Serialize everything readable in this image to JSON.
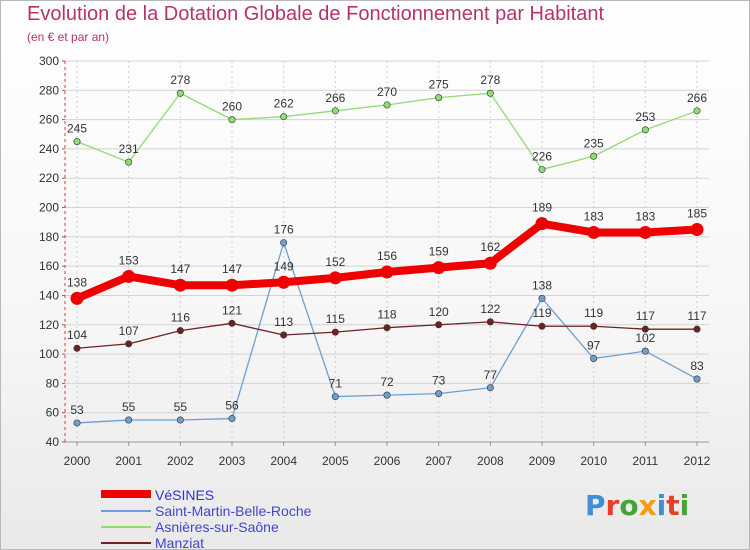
{
  "title": "Evolution de la Dotation Globale de Fonctionnement par Habitant",
  "subtitle": "(en € et par an)",
  "logo": {
    "letters": [
      "P",
      "r",
      "o",
      "x",
      "i",
      "t",
      "i"
    ],
    "colors": [
      "#3d8fd6",
      "#e5402a",
      "#46a335",
      "#f29d15",
      "#3d8fd6",
      "#e5402a",
      "#46a335"
    ]
  },
  "chart_data": {
    "type": "line",
    "title": "Evolution de la Dotation Globale de Fonctionnement par Habitant",
    "subtitle": "(en € et par an)",
    "xlabel": "",
    "ylabel": "",
    "ylim": [
      40,
      300
    ],
    "yticks": [
      "40",
      "60",
      "80",
      "100",
      "120",
      "140",
      "160",
      "180",
      "200",
      "220",
      "240",
      "260",
      "280",
      "300"
    ],
    "categories": [
      "2000",
      "2001",
      "2002",
      "2003",
      "2004",
      "2005",
      "2006",
      "2007",
      "2008",
      "2009",
      "2010",
      "2011",
      "2012"
    ],
    "grid": true,
    "legend_position": "bottom-left",
    "series": [
      {
        "name": "VéSINES",
        "color": "#ee0000",
        "emphasis": true,
        "values": [
          138,
          153,
          147,
          147,
          149,
          152,
          156,
          159,
          162,
          189,
          183,
          183,
          185
        ]
      },
      {
        "name": "Saint-Martin-Belle-Roche",
        "color": "#6e9fd0",
        "values": [
          53,
          55,
          55,
          56,
          176,
          71,
          72,
          73,
          77,
          138,
          97,
          102,
          83
        ]
      },
      {
        "name": "Asnières-sur-Saône",
        "color": "#8fdc72",
        "values": [
          245,
          231,
          278,
          260,
          262,
          266,
          270,
          275,
          278,
          226,
          235,
          253,
          266
        ]
      },
      {
        "name": "Manziat",
        "color": "#6e2323",
        "values": [
          104,
          107,
          116,
          121,
          113,
          115,
          118,
          120,
          122,
          119,
          119,
          117,
          117
        ]
      }
    ]
  }
}
